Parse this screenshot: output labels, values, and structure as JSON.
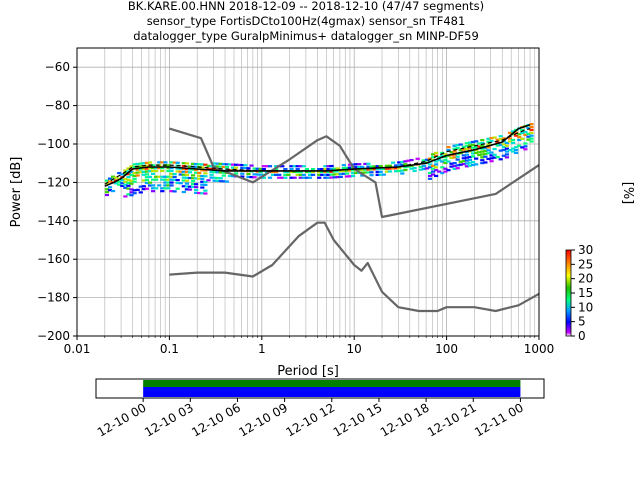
{
  "title_lines": [
    "BK.KARE.00.HNN   2018-12-09 -- 2018-12-10  (47/47 segments)",
    "sensor_type FortisDCto100Hz(4gmax) sensor_sn TF481",
    "datalogger_type GuralpMinimus+ datalogger_sn MINP-DF59"
  ],
  "chart_data": [
    {
      "type": "heatmap",
      "title": "BK.KARE.00.HNN   2018-12-09 -- 2018-12-10  (47/47 segments)",
      "xlabel": "Period [s]",
      "ylabel": "Power [dB]",
      "x_scale": "log",
      "xlim": [
        0.01,
        1000
      ],
      "ylim": [
        -200,
        -50
      ],
      "x_ticks": [
        "0.01",
        "0.1",
        "1",
        "10",
        "100",
        "1000"
      ],
      "y_ticks": [
        -60,
        -80,
        -100,
        -120,
        -140,
        -160,
        -180,
        -200
      ],
      "grid": true,
      "colorbar": {
        "label": "[%]",
        "range": [
          0,
          30
        ],
        "ticks": [
          0,
          5,
          10,
          15,
          20,
          25,
          30
        ]
      },
      "series": [
        {
          "name": "",
          "x": [
            0.1,
            0.22,
            0.3,
            0.8,
            2,
            4,
            5,
            7,
            10,
            17,
            20,
            340,
            1000
          ],
          "y": [
            -92,
            -97,
            -112,
            -120,
            -108,
            -98,
            -96,
            -101,
            -113,
            -120,
            -138,
            -126,
            -111
          ]
        },
        {
          "name": "",
          "x": [
            0.1,
            0.2,
            0.4,
            0.8,
            1.3,
            2.5,
            4,
            4.8,
            6,
            10,
            12,
            14,
            20,
            30,
            50,
            80,
            100,
            200,
            340,
            600,
            1000
          ],
          "y": [
            -168,
            -167,
            -167,
            -169,
            -163,
            -148,
            -141,
            -141,
            -150,
            -163,
            -166,
            -162,
            -177,
            -185,
            -187,
            -187,
            -185,
            -185,
            -187,
            -184,
            -178
          ]
        },
        {
          "name": "",
          "x": [
            0.02,
            0.025,
            0.03,
            0.04,
            0.06,
            0.1,
            0.2,
            0.4,
            1,
            5,
            10,
            30,
            60,
            100,
            200,
            400,
            600,
            800
          ],
          "y": [
            -122,
            -120,
            -118,
            -113,
            -112,
            -112,
            -113,
            -114,
            -114,
            -114,
            -113,
            -112,
            -110,
            -106,
            -103,
            -99,
            -92,
            -90
          ]
        },
        {
          "name": "",
          "x": [
            0.02,
            0.025,
            0.03,
            0.04,
            0.06,
            0.1,
            0.2,
            0.4,
            1,
            5,
            10,
            30,
            60,
            100,
            200,
            400,
            600,
            800
          ],
          "y": [
            -121,
            -118,
            -116,
            -112,
            -111,
            -111,
            -112,
            -113,
            -114,
            -114,
            -113,
            -112,
            -109,
            -104,
            -101,
            -98,
            -94,
            -92
          ]
        }
      ]
    },
    {
      "type": "bar",
      "xlabel": "",
      "ylabel": "",
      "x_ticks": [
        "12-10 00",
        "12-10 03",
        "12-10 06",
        "12-10 09",
        "12-10 12",
        "12-10 15",
        "12-10 18",
        "12-10 21",
        "12-11 00"
      ],
      "xlim": [
        "12-09 21:00",
        "12-11 01:30"
      ],
      "series": [
        {
          "name": "",
          "color": "#008000",
          "start": "12-10 00:00",
          "end": "12-11 00:00"
        },
        {
          "name": "",
          "color": "#0000ff",
          "start": "12-10 00:00",
          "end": "12-11 00:00"
        }
      ]
    }
  ]
}
